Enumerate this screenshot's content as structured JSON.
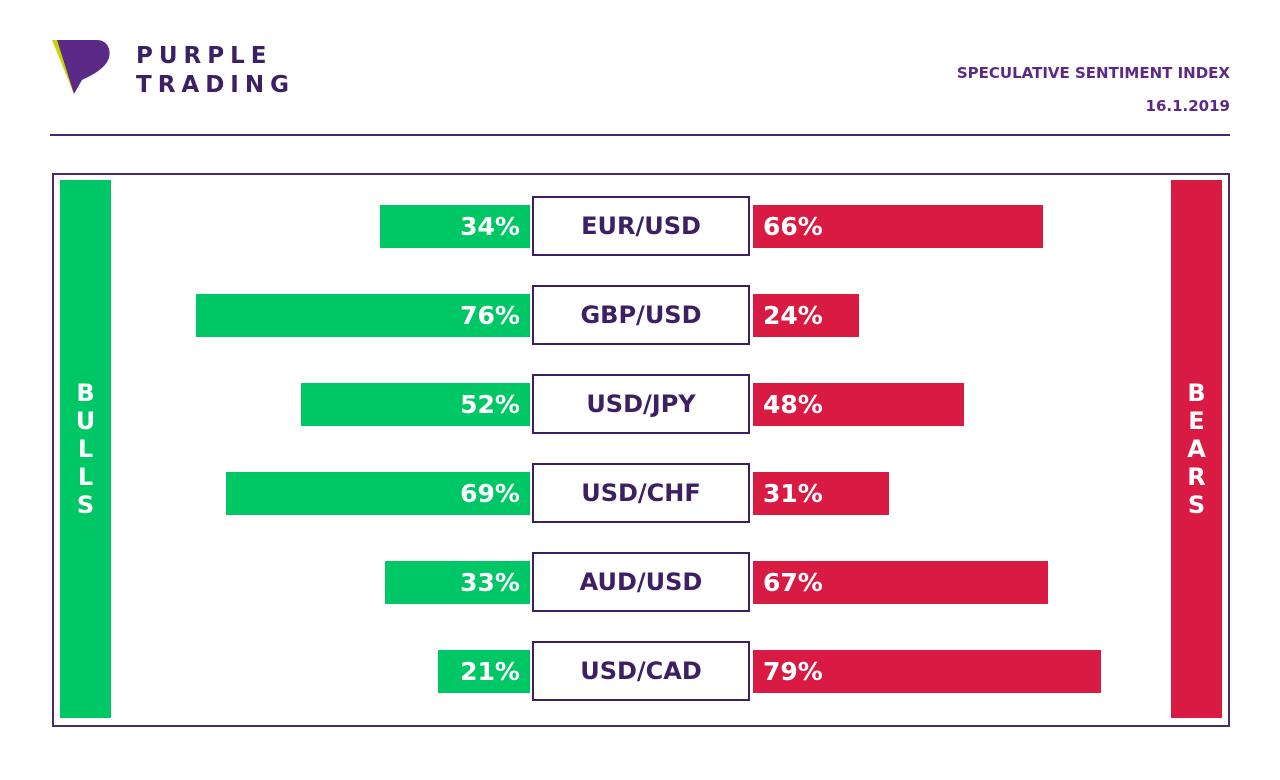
{
  "brand": {
    "line1": "PURPLE",
    "line2": "TRADING",
    "logo_icon": "purple-trading-logo-icon"
  },
  "header": {
    "title": "SPECULATIVE SENTIMENT INDEX",
    "date": "16.1.2019"
  },
  "labels": {
    "bulls": "BULLS",
    "bears": "BEARS"
  },
  "colors": {
    "bulls": "#00c766",
    "bears": "#d91a42",
    "purple": "#3d1f63",
    "logo_yellow": "#c8d400"
  },
  "chart_data": {
    "type": "bar",
    "categories": [
      "EUR/USD",
      "GBP/USD",
      "USD/JPY",
      "USD/CHF",
      "AUD/USD",
      "USD/CAD"
    ],
    "series": [
      {
        "name": "BULLS",
        "values": [
          34,
          76,
          52,
          69,
          33,
          21
        ],
        "labels": [
          "34%",
          "76%",
          "52%",
          "69%",
          "33%",
          "21%"
        ]
      },
      {
        "name": "BEARS",
        "values": [
          66,
          24,
          48,
          31,
          67,
          79
        ],
        "labels": [
          "66%",
          "24%",
          "48%",
          "31%",
          "67%",
          "79%"
        ]
      }
    ],
    "unit": "%"
  }
}
